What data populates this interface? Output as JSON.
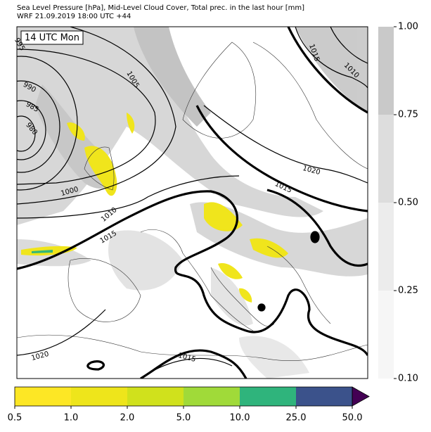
{
  "header": {
    "title": "Sea Level Pressure [hPa], Mid-Level Cloud Cover, Total prec. in the last hour [mm]",
    "subtitle": "WRF 21.09.2019 18:00 UTC +44"
  },
  "map": {
    "time_label": "14 UTC Mon",
    "isobar_labels": [
      "995",
      "990",
      "985",
      "980",
      "1005",
      "1000",
      "1010",
      "1015",
      "1020",
      "1015",
      "1010",
      "1020",
      "1015",
      "1015"
    ]
  },
  "cloud_colorbar": {
    "ticks": [
      "0.10",
      "0.25",
      "0.50",
      "0.75",
      "1.00"
    ],
    "colors": [
      "#f6f6f6",
      "#ececec",
      "#dddddd",
      "#c9c9c9"
    ]
  },
  "precip_colorbar": {
    "ticks": [
      "0.5",
      "1.0",
      "2.0",
      "5.0",
      "10.0",
      "25.0",
      "50.0"
    ],
    "colors": [
      "#fde725",
      "#eee51b",
      "#d0e11c",
      "#a0da39",
      "#2fb47c",
      "#3b528b"
    ],
    "over_color": "#440154"
  }
}
